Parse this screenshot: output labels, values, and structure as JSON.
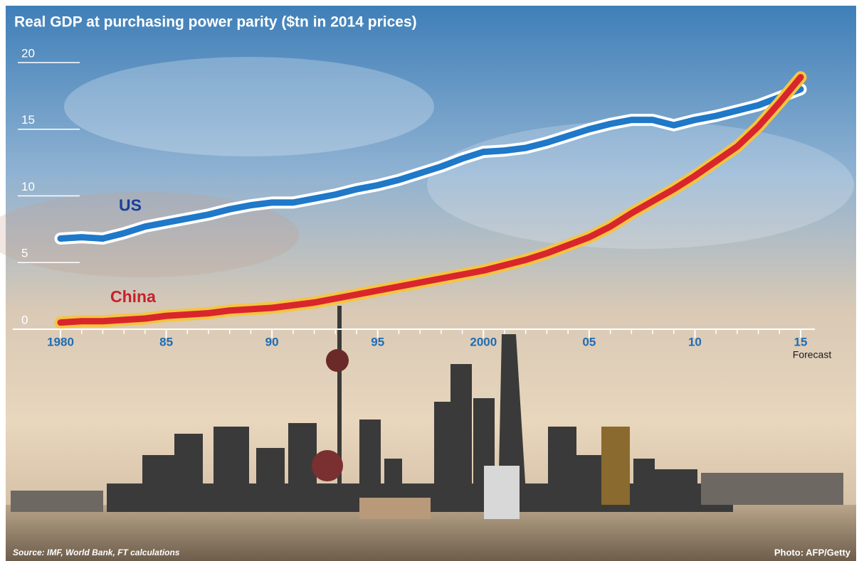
{
  "chart_data": {
    "type": "line",
    "title": "Real GDP at purchasing power parity ($tn in 2014 prices)",
    "x": [
      1980,
      1981,
      1982,
      1983,
      1984,
      1985,
      1986,
      1987,
      1988,
      1989,
      1990,
      1991,
      1992,
      1993,
      1994,
      1995,
      1996,
      1997,
      1998,
      1999,
      2000,
      2001,
      2002,
      2003,
      2004,
      2005,
      2006,
      2007,
      2008,
      2009,
      2010,
      2011,
      2012,
      2013,
      2014,
      2015
    ],
    "series": [
      {
        "name": "US",
        "color": "#1f78c8",
        "outline": "#ffffff",
        "label_color": "#1a3f9a",
        "values": [
          6.8,
          6.9,
          6.8,
          7.2,
          7.7,
          8.0,
          8.3,
          8.6,
          9.0,
          9.3,
          9.5,
          9.5,
          9.8,
          10.1,
          10.5,
          10.8,
          11.2,
          11.7,
          12.2,
          12.8,
          13.3,
          13.4,
          13.6,
          14.0,
          14.5,
          15.0,
          15.4,
          15.7,
          15.7,
          15.3,
          15.7,
          16.0,
          16.4,
          16.8,
          17.4,
          18.0
        ]
      },
      {
        "name": "China",
        "color": "#d9262c",
        "outline": "#f5c542",
        "label_color": "#c8202a",
        "values": [
          0.5,
          0.6,
          0.6,
          0.7,
          0.8,
          1.0,
          1.1,
          1.2,
          1.4,
          1.5,
          1.6,
          1.8,
          2.0,
          2.3,
          2.6,
          2.9,
          3.2,
          3.5,
          3.8,
          4.1,
          4.4,
          4.8,
          5.2,
          5.7,
          6.3,
          6.9,
          7.7,
          8.7,
          9.6,
          10.5,
          11.5,
          12.6,
          13.7,
          15.2,
          17.0,
          18.9
        ]
      }
    ],
    "xlim": [
      1980,
      2015
    ],
    "xticks": [
      1980,
      {
        "value": 1985,
        "label": "85"
      },
      {
        "value": 1990,
        "label": "90"
      },
      {
        "value": 1995,
        "label": "95"
      },
      2000,
      {
        "value": 2005,
        "label": "05"
      },
      {
        "value": 2010,
        "label": "10"
      },
      {
        "value": 2015,
        "label": "15"
      }
    ],
    "ylim": [
      0,
      20
    ],
    "yticks": [
      0,
      5,
      10,
      15,
      20
    ],
    "annotation": "Forecast",
    "source": "Source: IMF, World Bank, FT calculations",
    "credit": "Photo: AFP/Getty"
  }
}
